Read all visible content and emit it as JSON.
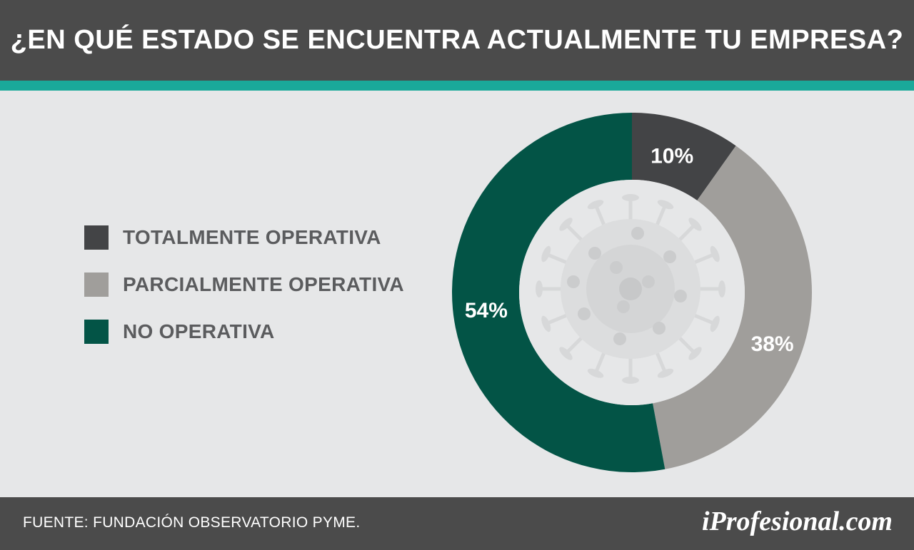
{
  "header": {
    "title": "¿EN QUÉ ESTADO SE ENCUENTRA ACTUALMENTE TU EMPRESA?"
  },
  "colors": {
    "header_bg": "#4b4b4b",
    "accent": "#1aa99a",
    "background": "#e6e7e8",
    "legend_text": "#5b5c5e"
  },
  "chart_data": {
    "type": "pie",
    "subtype": "donut",
    "title": "¿EN QUÉ ESTADO SE ENCUENTRA ACTUALMENTE TU EMPRESA?",
    "legend_position": "left",
    "center_decoration": "coronavirus-illustration",
    "slices": [
      {
        "name": "TOTALMENTE OPERATIVA",
        "value": 10,
        "label": "10%",
        "color": "#434446"
      },
      {
        "name": "PARCIALMENTE OPERATIVA",
        "value": 38,
        "label": "38%",
        "color": "#a09e9b"
      },
      {
        "name": "NO OPERATIVA",
        "value": 54,
        "label": "54%",
        "color": "#035446"
      }
    ]
  },
  "footer": {
    "source": "FUENTE:  FUNDACIÓN OBSERVATORIO PYME.",
    "brand": "iProfesional.com"
  }
}
